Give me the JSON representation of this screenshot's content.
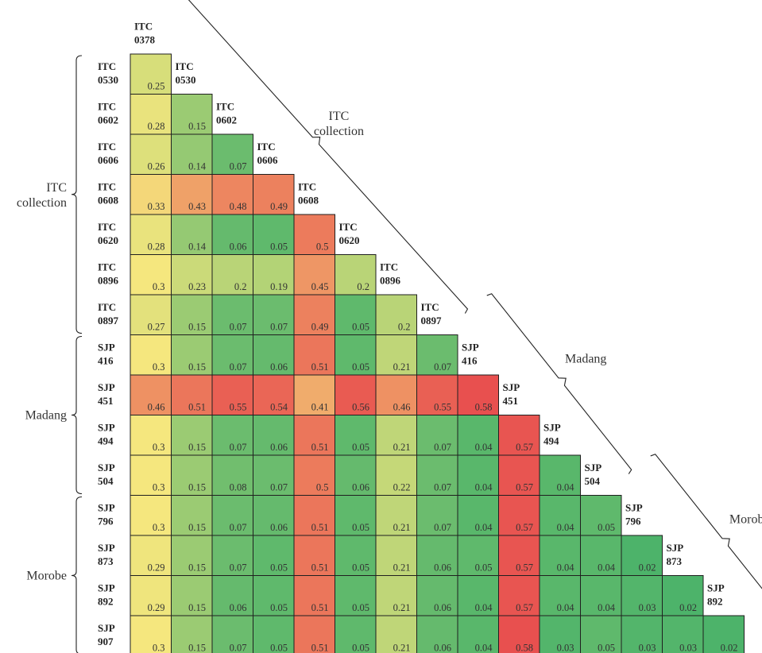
{
  "chart_data": {
    "type": "heatmap",
    "labels": [
      [
        "ITC",
        "0378"
      ],
      [
        "ITC",
        "0530"
      ],
      [
        "ITC",
        "0602"
      ],
      [
        "ITC",
        "0606"
      ],
      [
        "ITC",
        "0608"
      ],
      [
        "ITC",
        "0620"
      ],
      [
        "ITC",
        "0896"
      ],
      [
        "ITC",
        "0897"
      ],
      [
        "SJP",
        "416"
      ],
      [
        "SJP",
        "451"
      ],
      [
        "SJP",
        "494"
      ],
      [
        "SJP",
        "504"
      ],
      [
        "SJP",
        "796"
      ],
      [
        "SJP",
        "873"
      ],
      [
        "SJP",
        "892"
      ],
      [
        "SJP",
        "907"
      ]
    ],
    "matrix": [
      [
        0.25
      ],
      [
        0.28,
        0.15
      ],
      [
        0.26,
        0.14,
        0.07
      ],
      [
        0.33,
        0.43,
        0.48,
        0.49
      ],
      [
        0.28,
        0.14,
        0.06,
        0.05,
        0.5
      ],
      [
        0.3,
        0.23,
        0.2,
        0.19,
        0.45,
        0.2
      ],
      [
        0.27,
        0.15,
        0.07,
        0.07,
        0.49,
        0.05,
        0.2
      ],
      [
        0.3,
        0.15,
        0.07,
        0.06,
        0.51,
        0.05,
        0.21,
        0.07
      ],
      [
        0.46,
        0.51,
        0.55,
        0.54,
        0.41,
        0.56,
        0.46,
        0.55,
        0.58
      ],
      [
        0.3,
        0.15,
        0.07,
        0.06,
        0.51,
        0.05,
        0.21,
        0.07,
        0.04,
        0.57
      ],
      [
        0.3,
        0.15,
        0.08,
        0.07,
        0.5,
        0.06,
        0.22,
        0.07,
        0.04,
        0.57,
        0.04
      ],
      [
        0.3,
        0.15,
        0.07,
        0.06,
        0.51,
        0.05,
        0.21,
        0.07,
        0.04,
        0.57,
        0.04,
        0.05
      ],
      [
        0.29,
        0.15,
        0.07,
        0.05,
        0.51,
        0.05,
        0.21,
        0.06,
        0.05,
        0.57,
        0.04,
        0.04,
        0.02
      ],
      [
        0.29,
        0.15,
        0.06,
        0.05,
        0.51,
        0.05,
        0.21,
        0.06,
        0.04,
        0.57,
        0.04,
        0.04,
        0.03,
        0.02
      ],
      [
        0.3,
        0.15,
        0.07,
        0.05,
        0.51,
        0.05,
        0.21,
        0.06,
        0.04,
        0.58,
        0.03,
        0.05,
        0.03,
        0.03,
        0.02
      ]
    ],
    "groups": [
      {
        "name": "ITC collection",
        "row_label": [
          "ITC",
          "collection"
        ],
        "diag_label": [
          "ITC",
          "collection"
        ]
      },
      {
        "name": "Madang",
        "row_label": [
          "Madang"
        ],
        "diag_label": [
          "Madang"
        ]
      },
      {
        "name": "Morobe",
        "row_label": [
          "Morobe"
        ],
        "diag_label": [
          "Morobe"
        ]
      }
    ],
    "color_scale": {
      "min": 0.02,
      "max": 0.58,
      "colors": [
        "#4db36a",
        "#f5e77e",
        "#e8504f"
      ]
    }
  }
}
